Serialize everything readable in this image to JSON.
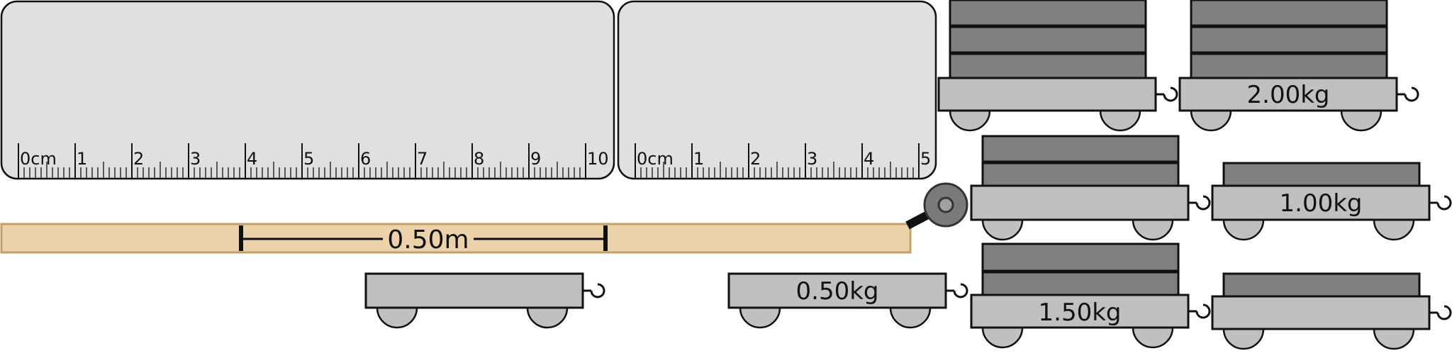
{
  "rulers": [
    {
      "name": "ruler-10cm",
      "labels": [
        "0cm",
        "1",
        "2",
        "3",
        "4",
        "5",
        "6",
        "7",
        "8",
        "9",
        "10"
      ]
    },
    {
      "name": "ruler-5cm",
      "labels": [
        "0cm",
        "1",
        "2",
        "3",
        "4",
        "5"
      ]
    }
  ],
  "track": {
    "distance_label": "0.50m"
  },
  "carts": {
    "cart_top_2kg": {
      "mass_label": "2.00kg"
    },
    "cart_mid_1kg": {
      "mass_label": "1.00kg"
    },
    "cart_bottom_050kg": {
      "mass_label": "0.50kg"
    },
    "cart_bottom_150kg": {
      "mass_label": "1.50kg"
    }
  },
  "colors": {
    "ruler_fill": "#e0e0e0",
    "track_fill": "#ebd2aa",
    "track_stroke": "#c4a066",
    "cart_body": "#c0c0c0",
    "weight_fill": "#808080"
  }
}
